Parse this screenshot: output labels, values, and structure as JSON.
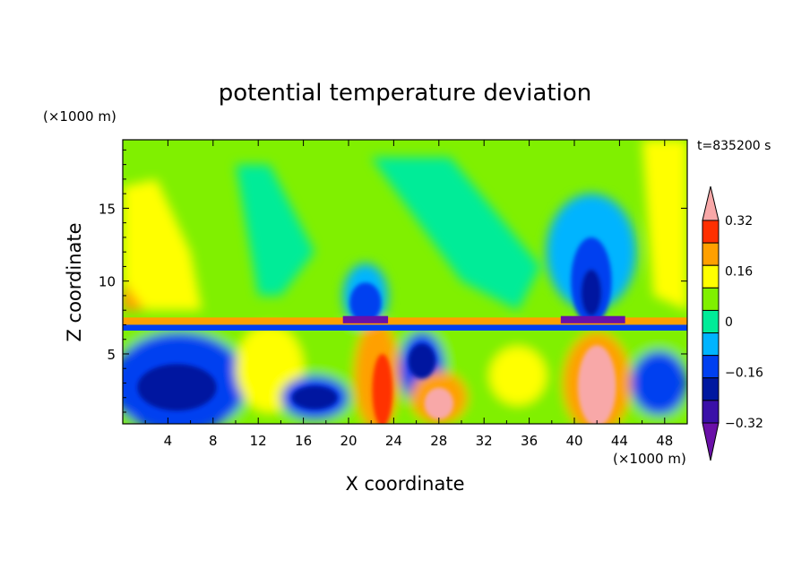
{
  "chart_data": {
    "type": "heatmap",
    "title": "potential temperature deviation",
    "time_label": "t=835200 s",
    "xlabel": "X coordinate",
    "ylabel": "Z coordinate",
    "x_unit": "(×1000 m)",
    "y_unit": "(×1000 m)",
    "xlim": [
      0,
      50
    ],
    "ylim": [
      0.2,
      19.7
    ],
    "x_ticks": [
      "4",
      "8",
      "12",
      "16",
      "20",
      "24",
      "28",
      "32",
      "36",
      "40",
      "44",
      "48"
    ],
    "y_ticks": [
      "5",
      "10",
      "15"
    ],
    "colorbar": {
      "levels": [
        -0.4,
        -0.32,
        -0.24,
        -0.16,
        -0.08,
        0,
        0.08,
        0.16,
        0.24,
        0.32,
        0.4
      ],
      "labels": [
        "0.32",
        "0.16",
        "0",
        "−0.16",
        "−0.32"
      ],
      "label_values": [
        0.32,
        0.16,
        0,
        -0.16,
        -0.32
      ],
      "colors": [
        "#6a10a8",
        "#3a10a8",
        "#0018a0",
        "#0040f0",
        "#00b4ff",
        "#00ec98",
        "#80f000",
        "#ffff00",
        "#ffa000",
        "#ff3000",
        "#f8a8a8"
      ]
    },
    "features": [
      {
        "x": 5,
        "z": 2.5,
        "value": -0.32
      },
      {
        "x": 2,
        "z": 12,
        "value": 0.16
      },
      {
        "x": 21.5,
        "z": 9,
        "value": -0.24
      },
      {
        "x": 23,
        "z": 3,
        "value": 0.32
      },
      {
        "x": 28,
        "z": 2,
        "value": 0.4
      },
      {
        "x": 41.5,
        "z": 10,
        "value": -0.32
      },
      {
        "x": 42,
        "z": 3,
        "value": 0.4
      },
      {
        "x": 48,
        "z": 12,
        "value": 0.16
      }
    ]
  }
}
